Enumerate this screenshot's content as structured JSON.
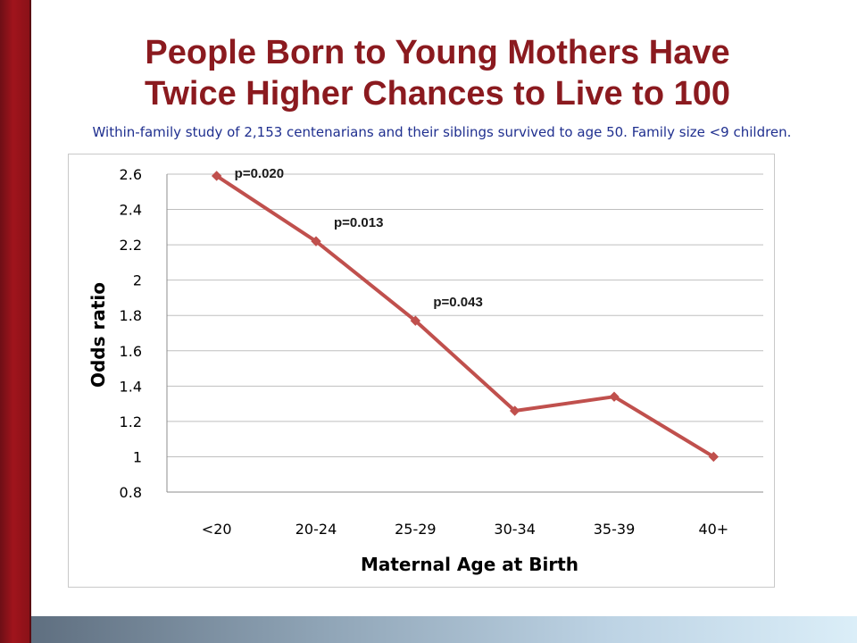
{
  "slide": {
    "title_line1": "People Born to Young Mothers Have",
    "title_line2": "Twice Higher Chances to Live to 100",
    "subtitle": "Within-family study of 2,153 centenarians and their siblings survived to age 50. Family size <9 children."
  },
  "colors": {
    "title": "#8b1a1f",
    "subtitle": "#1f2f8f",
    "series_line": "#c0504d",
    "grid": "#bfbfbf"
  },
  "chart_data": {
    "type": "line",
    "categories": [
      "<20",
      "20-24",
      "25-29",
      "30-34",
      "35-39",
      "40+"
    ],
    "series": [
      {
        "values": [
          2.59,
          2.22,
          1.77,
          1.26,
          1.34,
          1.0
        ]
      }
    ],
    "annotations": [
      {
        "category": "<20",
        "text": "p=0.020"
      },
      {
        "category": "20-24",
        "text": "p=0.013"
      },
      {
        "category": "25-29",
        "text": "p=0.043"
      }
    ],
    "xlabel": "Maternal Age at Birth",
    "ylabel": "Odds ratio",
    "ylim": [
      0.8,
      2.6
    ],
    "yticks": [
      "0.8",
      "1",
      "1.2",
      "1.4",
      "1.6",
      "1.8",
      "2",
      "2.2",
      "2.4",
      "2.6"
    ],
    "grid": true,
    "legend": "none"
  }
}
